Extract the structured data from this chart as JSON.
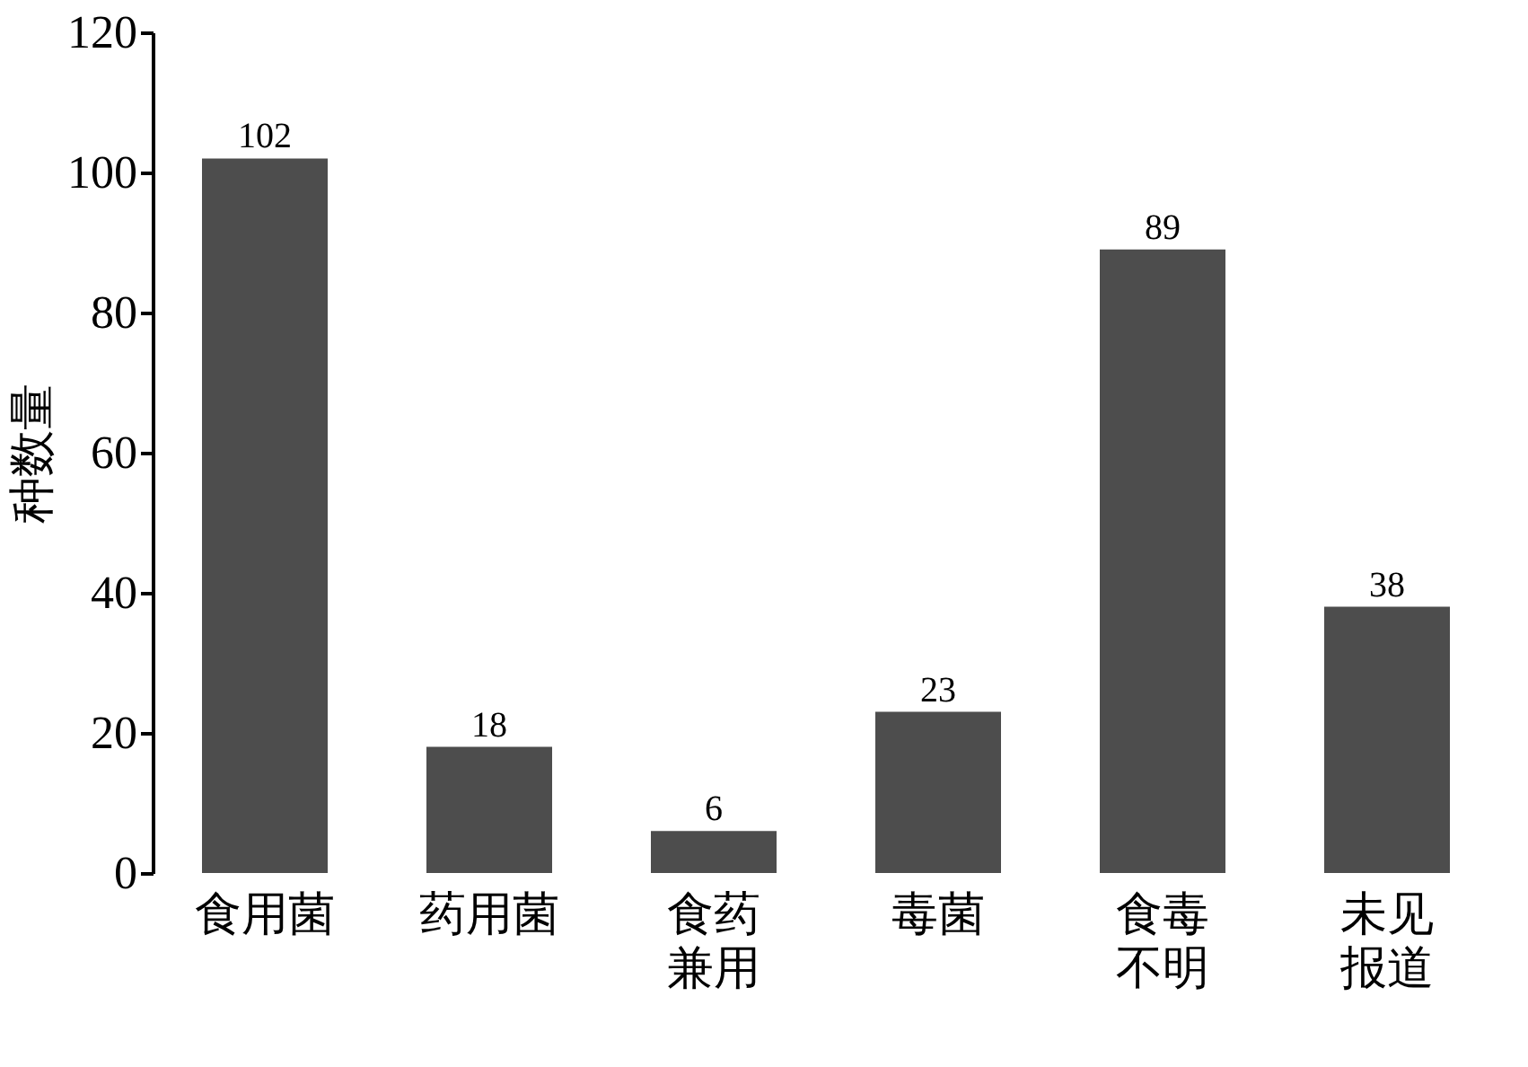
{
  "chart_data": {
    "type": "bar",
    "ylabel": "种数量",
    "categories": [
      "食用菌",
      "药用菌",
      "食药兼用",
      "毒菌",
      "食毒不明",
      "未见报道"
    ],
    "values": [
      102,
      18,
      6,
      23,
      89,
      38
    ],
    "color": "#4d4d4d",
    "ylim": [
      0,
      120
    ],
    "yticks": [
      0,
      20,
      40,
      60,
      80,
      100,
      120
    ],
    "grid": false,
    "data_labels": true
  }
}
